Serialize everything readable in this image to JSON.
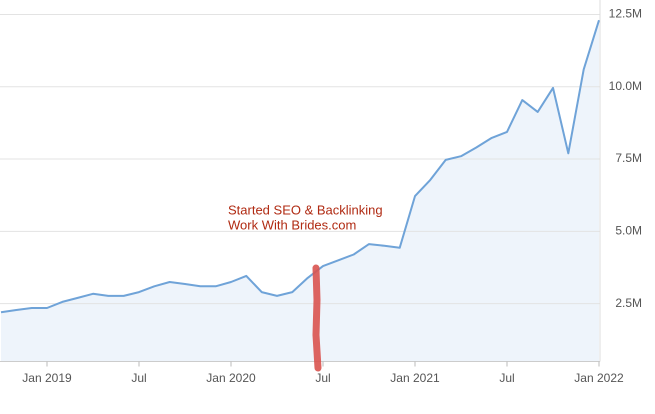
{
  "chart_data": {
    "type": "area",
    "annotation": [
      "Started SEO & Backlinking",
      "Work With Brides.com"
    ],
    "x": [
      "2018-10",
      "2018-11",
      "2018-12",
      "2019-01",
      "2019-02",
      "2019-03",
      "2019-04",
      "2019-05",
      "2019-06",
      "2019-07",
      "2019-08",
      "2019-09",
      "2019-10",
      "2019-11",
      "2019-12",
      "2020-01",
      "2020-02",
      "2020-03",
      "2020-04",
      "2020-05",
      "2020-06",
      "2020-07",
      "2020-08",
      "2020-09",
      "2020-10",
      "2020-11",
      "2020-12",
      "2021-01",
      "2021-02",
      "2021-03",
      "2021-04",
      "2021-05",
      "2021-06",
      "2021-07",
      "2021-08",
      "2021-09",
      "2021-10",
      "2021-11",
      "2021-12",
      "2022-01"
    ],
    "series": [
      {
        "color": "#6fa3d8",
        "values": [
          2200000,
          2280000,
          2350000,
          2350000,
          2560000,
          2700000,
          2840000,
          2770000,
          2770000,
          2900000,
          3100000,
          3250000,
          3180000,
          3100000,
          3100000,
          3250000,
          3460000,
          2900000,
          2770000,
          2900000,
          3390000,
          3800000,
          4000000,
          4200000,
          4560000,
          4500000,
          4430000,
          6220000,
          6780000,
          7470000,
          7600000,
          7900000,
          8230000,
          8440000,
          9540000,
          9130000,
          9960000,
          7700000,
          10600000,
          12300000
        ]
      }
    ],
    "xlim": [
      "2018-10",
      "2022-01"
    ],
    "xticks": [
      {
        "value": "2019-01",
        "label": "Jan 2019"
      },
      {
        "value": "2019-07",
        "label": "Jul"
      },
      {
        "value": "2020-01",
        "label": "Jan 2020"
      },
      {
        "value": "2020-07",
        "label": "Jul"
      },
      {
        "value": "2021-01",
        "label": "Jan 2021"
      },
      {
        "value": "2021-07",
        "label": "Jul"
      },
      {
        "value": "2022-01",
        "label": "Jan 2022"
      }
    ],
    "ylim": [
      500000,
      13000000
    ],
    "yticks": [
      {
        "value": 2500000,
        "label": "2.5M"
      },
      {
        "value": 5000000,
        "label": "5.0M"
      },
      {
        "value": 7500000,
        "label": "7.5M"
      },
      {
        "value": 10000000,
        "label": "10.0M"
      },
      {
        "value": 12500000,
        "label": "12.5M"
      }
    ],
    "grid": true
  }
}
